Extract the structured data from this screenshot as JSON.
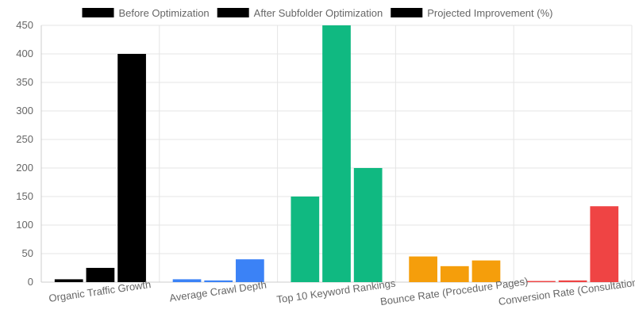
{
  "chart_data": {
    "type": "bar",
    "title": "",
    "xlabel": "",
    "ylabel": "",
    "ylim": [
      0,
      450
    ],
    "yticks": [
      0,
      50,
      100,
      150,
      200,
      250,
      300,
      350,
      400,
      450
    ],
    "grid": true,
    "legend": "top-center",
    "legend_swatch_color": "#000000",
    "categories": [
      "Organic Traffic Growth",
      "Average Crawl Depth",
      "Top 10 Keyword Rankings",
      "Bounce Rate (Procedure Pages)",
      "Conversion Rate (Consultations)"
    ],
    "category_colors": [
      "#000000",
      "#3b82f6",
      "#10b981",
      "#f59e0b",
      "#ef4444"
    ],
    "series": [
      {
        "name": "Before Optimization",
        "values": [
          5,
          5,
          150,
          45,
          2
        ]
      },
      {
        "name": "After Subfolder Optimization",
        "values": [
          25,
          3,
          450,
          28,
          3
        ]
      },
      {
        "name": "Projected Improvement (%)",
        "values": [
          400,
          40,
          200,
          38,
          133
        ]
      }
    ]
  }
}
